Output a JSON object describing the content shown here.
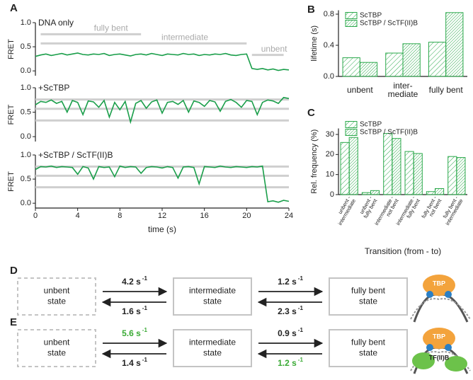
{
  "chart_data": [
    {
      "type": "line",
      "panel": "A",
      "label": "DNA only",
      "ylabel": "FRET",
      "color": "#1a9e4a",
      "xlim": [
        0,
        24
      ],
      "ylim": [
        -0.1,
        1.0
      ],
      "yticks": [
        {
          "value": 0,
          "label": "0.0"
        },
        0.5,
        {
          "value": 1,
          "label": "1.0"
        }
      ],
      "ref_lines": [
        {
          "label": "fully bent",
          "value": 0.76,
          "x": [
            0.5,
            10
          ]
        },
        {
          "label": "intermediate",
          "value": 0.57,
          "x": [
            0.5,
            20
          ]
        },
        {
          "label": "unbent",
          "value": 0.33,
          "x": [
            20.5,
            23.5
          ]
        }
      ],
      "x": [
        0,
        0.5,
        1,
        1.5,
        2,
        2.5,
        3,
        3.5,
        4,
        4.5,
        5,
        5.5,
        6,
        6.5,
        7,
        7.5,
        8,
        8.5,
        9,
        9.5,
        10,
        10.5,
        11,
        11.5,
        12,
        12.5,
        13,
        13.5,
        14,
        14.5,
        15,
        15.5,
        16,
        16.5,
        17,
        17.5,
        18,
        18.5,
        19,
        19.5,
        20,
        20.5,
        21,
        21.5,
        22,
        22.5,
        23,
        23.5,
        24
      ],
      "values": [
        0.3,
        0.33,
        0.35,
        0.32,
        0.34,
        0.36,
        0.33,
        0.35,
        0.37,
        0.34,
        0.33,
        0.35,
        0.34,
        0.36,
        0.32,
        0.34,
        0.35,
        0.33,
        0.31,
        0.34,
        0.35,
        0.33,
        0.36,
        0.34,
        0.32,
        0.35,
        0.34,
        0.33,
        0.36,
        0.34,
        0.35,
        0.32,
        0.34,
        0.33,
        0.35,
        0.34,
        0.36,
        0.33,
        0.32,
        0.34,
        0.35,
        0.05,
        0.03,
        0.05,
        0.02,
        0.04,
        0.01,
        0.03,
        0.02
      ]
    },
    {
      "type": "line",
      "label": "+ScTBP",
      "ylabel": "FRET",
      "color": "#1a9e4a",
      "xlim": [
        0,
        24
      ],
      "ylim": [
        -0.1,
        1.0
      ],
      "yticks": [
        {
          "value": 0,
          "label": "0.0"
        },
        0.5,
        {
          "value": 1,
          "label": "1.0"
        }
      ],
      "ref_lines": [
        {
          "value": 0.76
        },
        {
          "value": 0.57
        },
        {
          "value": 0.33
        }
      ],
      "x": [
        0,
        0.5,
        1,
        1.5,
        2,
        2.5,
        3,
        3.5,
        4,
        4.5,
        5,
        5.5,
        6,
        6.5,
        7,
        7.5,
        8,
        8.5,
        9,
        9.5,
        10,
        10.5,
        11,
        11.5,
        12,
        12.5,
        13,
        13.5,
        14,
        14.5,
        15,
        15.5,
        16,
        16.5,
        17,
        17.5,
        18,
        18.5,
        19,
        19.5,
        20,
        20.5,
        21,
        21.5,
        22,
        22.5,
        23,
        23.5,
        24
      ],
      "values": [
        0.65,
        0.72,
        0.7,
        0.75,
        0.68,
        0.72,
        0.5,
        0.74,
        0.7,
        0.45,
        0.73,
        0.71,
        0.6,
        0.74,
        0.4,
        0.7,
        0.55,
        0.72,
        0.3,
        0.68,
        0.74,
        0.58,
        0.71,
        0.75,
        0.48,
        0.7,
        0.72,
        0.66,
        0.74,
        0.5,
        0.73,
        0.7,
        0.62,
        0.74,
        0.71,
        0.52,
        0.72,
        0.76,
        0.7,
        0.6,
        0.74,
        0.72,
        0.45,
        0.7,
        0.75,
        0.73,
        0.68,
        0.8,
        0.78
      ]
    },
    {
      "type": "line",
      "label": "+ScTBP / ScTF(II)B",
      "ylabel": "FRET",
      "xlabel": "time (s)",
      "color": "#1a9e4a",
      "xlim": [
        0,
        24
      ],
      "ylim": [
        -0.1,
        1.0
      ],
      "xticks": [
        0,
        4,
        8,
        12,
        16,
        20,
        24
      ],
      "yticks": [
        {
          "value": 0,
          "label": "0.0"
        },
        0.5,
        {
          "value": 1,
          "label": "1.0"
        }
      ],
      "ref_lines": [
        {
          "value": 0.76
        },
        {
          "value": 0.57
        },
        {
          "value": 0.33
        }
      ],
      "x": [
        0,
        0.5,
        1,
        1.5,
        2,
        2.5,
        3,
        3.5,
        4,
        4.5,
        5,
        5.5,
        6,
        6.5,
        7,
        7.5,
        8,
        8.5,
        9,
        9.5,
        10,
        10.5,
        11,
        11.5,
        12,
        12.5,
        13,
        13.5,
        14,
        14.5,
        15,
        15.5,
        16,
        16.5,
        17,
        17.5,
        18,
        18.5,
        19,
        19.5,
        20,
        20.5,
        21,
        21.5,
        22,
        22.5,
        23,
        23.5,
        24
      ],
      "values": [
        0.7,
        0.76,
        0.75,
        0.77,
        0.74,
        0.76,
        0.75,
        0.74,
        0.6,
        0.76,
        0.73,
        0.5,
        0.76,
        0.74,
        0.75,
        0.55,
        0.77,
        0.74,
        0.76,
        0.75,
        0.62,
        0.74,
        0.76,
        0.75,
        0.73,
        0.76,
        0.74,
        0.52,
        0.75,
        0.76,
        0.74,
        0.4,
        0.76,
        0.75,
        0.74,
        0.77,
        0.75,
        0.74,
        0.76,
        0.75,
        0.74,
        0.76,
        0.75,
        0.77,
        0.03,
        0.05,
        0.02,
        0.06,
        0.04
      ]
    },
    {
      "type": "bar",
      "panel": "B",
      "ylabel": "lifetime (s)",
      "categories": [
        [
          "unbent"
        ],
        [
          "inter-",
          "mediate"
        ],
        [
          "fully bent"
        ]
      ],
      "series": [
        {
          "name": "ScTBP",
          "color": "#2aa84a",
          "values": [
            0.24,
            0.3,
            0.44
          ]
        },
        {
          "name": "ScTBP / ScTF(II)B",
          "color": "#2aa84a",
          "values": [
            0.18,
            0.42,
            0.82
          ]
        }
      ],
      "ylim": [
        0,
        0.85
      ],
      "yticks": [
        {
          "value": 0,
          "label": "0.0"
        },
        0.4,
        0.8
      ]
    },
    {
      "type": "bar",
      "panel": "C",
      "ylabel": "Rel. frequency (%)",
      "xlabel": "Transition (from - to)",
      "categories": [
        [
          "unbent -",
          "intermediate"
        ],
        [
          "unbent -",
          "fully bent"
        ],
        [
          "intermediate -",
          "not bent"
        ],
        [
          "intermediate -",
          "fully bent"
        ],
        [
          "fully bent -",
          "not bent"
        ],
        [
          "fully bent -",
          "intermediate"
        ]
      ],
      "series": [
        {
          "name": "ScTBP",
          "color": "#2aa84a",
          "values": [
            26,
            1,
            30.5,
            21.5,
            1.5,
            19
          ]
        },
        {
          "name": "ScTBP / ScTF(II)B",
          "color": "#2aa84a",
          "values": [
            28.5,
            2,
            28,
            20.5,
            3,
            18.5
          ]
        }
      ],
      "ylim": [
        0,
        33
      ],
      "yticks": [
        0,
        10,
        20,
        30
      ]
    }
  ],
  "diagrams": [
    {
      "panel": "D",
      "states": [
        [
          "unbent",
          "state"
        ],
        [
          "intermediate",
          "state"
        ],
        [
          "fully bent",
          "state"
        ]
      ],
      "rates": [
        {
          "forward": {
            "text": "4.2 s",
            "exp": "-1"
          },
          "backward": {
            "text": "1.6 s",
            "exp": "-1"
          }
        },
        {
          "forward": {
            "text": "1.2 s",
            "exp": "-1"
          },
          "backward": {
            "text": "2.3 s",
            "exp": "-1"
          }
        }
      ],
      "icon_labels": [
        "TBP"
      ]
    },
    {
      "panel": "E",
      "states": [
        [
          "unbent",
          "state"
        ],
        [
          "intermediate",
          "state"
        ],
        [
          "fully bent",
          "state"
        ]
      ],
      "rates": [
        {
          "forward": {
            "text": "5.6 s",
            "exp": "-1",
            "color": "#3aaa35"
          },
          "backward": {
            "text": "1.4 s",
            "exp": "-1"
          }
        },
        {
          "forward": {
            "text": "0.9 s",
            "exp": "-1"
          },
          "backward": {
            "text": "1.2 s",
            "exp": "-1",
            "color": "#3aaa35"
          }
        }
      ],
      "icon_labels": [
        "TBP",
        "TF(II)B"
      ]
    }
  ]
}
